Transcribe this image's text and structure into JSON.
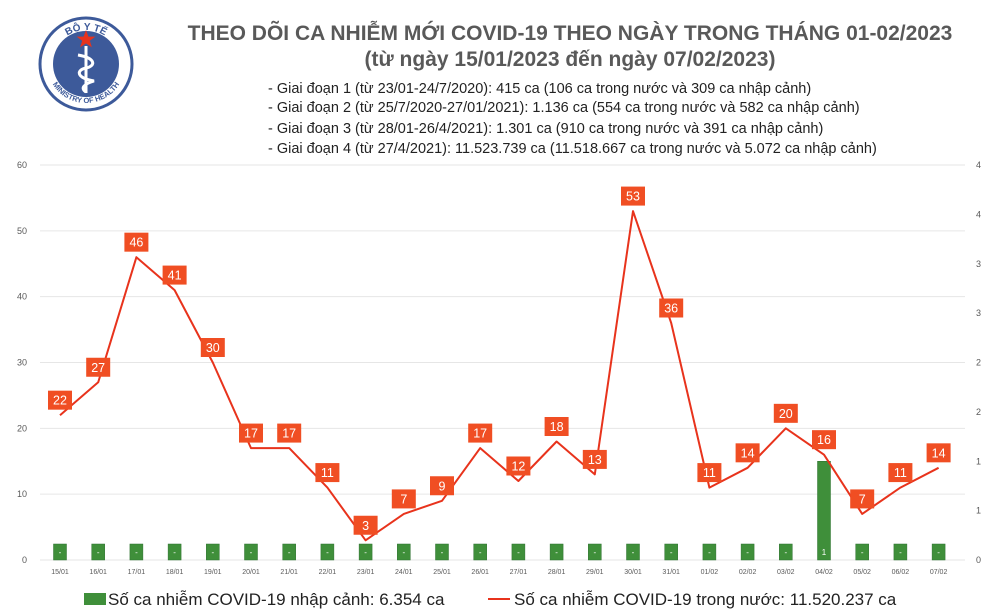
{
  "header": {
    "logo_text_top": "BỘ Y TẾ",
    "logo_text_bottom": "MINISTRY OF HEALTH",
    "title": "THEO DÕI CA NHIỄM MỚI COVID-19 THEO NGÀY TRONG THÁNG 01-02/2023",
    "subtitle": "(từ ngày 15/01/2023 đến ngày 07/02/2023)"
  },
  "phases": [
    "- Giai đoạn 1 (từ 23/01-24/7/2020): 415 ca (106 ca trong nước và 309 ca nhập cảnh)",
    "- Giai đoạn 2 (từ 25/7/2020-27/01/2021): 1.136 ca (554 ca trong nước và 582 ca nhập cảnh)",
    "- Giai đoạn 3 (từ 28/01-26/4/2021): 1.301 ca (910 ca trong nước và 391 ca nhập cảnh)",
    "- Giai đoạn 4 (từ 27/4/2021): 11.523.739 ca (11.518.667 ca trong nước và 5.072 ca nhập cảnh)"
  ],
  "colors": {
    "line": "#e8331c",
    "label_bg": "#f04e23",
    "bar": "#3f8f3a",
    "bar_edge": "#2e7030",
    "title": "#595959",
    "logo": "#3d5a9a"
  },
  "chart_data": {
    "type": "bar+line",
    "categories": [
      "15/01",
      "16/01",
      "17/01",
      "18/01",
      "19/01",
      "20/01",
      "21/01",
      "22/01",
      "23/01",
      "24/01",
      "25/01",
      "26/01",
      "27/01",
      "28/01",
      "29/01",
      "30/01",
      "31/01",
      "01/02",
      "02/02",
      "03/02",
      "04/02",
      "05/02",
      "06/02",
      "07/02"
    ],
    "bar_series": {
      "name": "Số ca nhiễm COVID-19 nhập cảnh: 6.354 ca",
      "values": [
        0,
        0,
        0,
        0,
        0,
        0,
        0,
        0,
        0,
        0,
        0,
        0,
        0,
        0,
        0,
        0,
        0,
        0,
        0,
        0,
        1,
        0,
        0,
        0
      ],
      "labels": [
        "-",
        "-",
        "-",
        "-",
        "-",
        "-",
        "-",
        "-",
        "-",
        "-",
        "-",
        "-",
        "-",
        "-",
        "-",
        "-",
        "-",
        "-",
        "-",
        "-",
        "1",
        "-",
        "-",
        "-"
      ],
      "axis": "right"
    },
    "line_series": {
      "name": "Số ca nhiễm COVID-19 trong nước: 11.520.237 ca",
      "values": [
        22,
        27,
        46,
        41,
        30,
        17,
        17,
        11,
        3,
        7,
        9,
        17,
        12,
        18,
        13,
        53,
        36,
        11,
        14,
        20,
        16,
        7,
        11,
        14
      ],
      "axis": "left"
    },
    "left_axis": {
      "ylim": [
        0,
        60
      ],
      "ticks": [
        "0",
        "10",
        "20",
        "30",
        "40",
        "50",
        "60"
      ]
    },
    "right_axis": {
      "ylim": [
        0,
        4
      ],
      "ticks": [
        "0",
        "1",
        "1",
        "2",
        "2",
        "3",
        "3",
        "4",
        "4"
      ]
    },
    "legend_placement": "bottom"
  }
}
